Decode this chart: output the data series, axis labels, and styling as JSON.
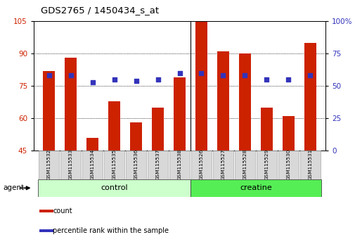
{
  "title": "GDS2765 / 1450434_s_at",
  "samples": [
    "GSM115532",
    "GSM115533",
    "GSM115534",
    "GSM115535",
    "GSM115536",
    "GSM115537",
    "GSM115538",
    "GSM115526",
    "GSM115527",
    "GSM115528",
    "GSM115529",
    "GSM115530",
    "GSM115531"
  ],
  "bar_values": [
    82,
    88,
    51,
    68,
    58,
    65,
    79,
    105,
    91,
    90,
    65,
    61,
    95
  ],
  "pct_values": [
    58,
    58,
    53,
    55,
    54,
    55,
    60,
    60,
    58,
    58,
    55,
    55,
    58
  ],
  "bar_color": "#cc2200",
  "pct_color": "#3333bb",
  "ylim_left": [
    45,
    105
  ],
  "ylim_right": [
    0,
    100
  ],
  "yticks_left": [
    45,
    60,
    75,
    90,
    105
  ],
  "ytick_labels_left": [
    "45",
    "60",
    "75",
    "90",
    "105"
  ],
  "yticks_right": [
    0,
    25,
    50,
    75,
    100
  ],
  "ytick_labels_right": [
    "0",
    "25",
    "50",
    "75",
    "100%"
  ],
  "groups": [
    {
      "label": "control",
      "start": 0,
      "end": 6,
      "color": "#ccffcc"
    },
    {
      "label": "creatine",
      "start": 7,
      "end": 12,
      "color": "#55ee55"
    }
  ],
  "agent_label": "agent",
  "legend_items": [
    {
      "label": "count",
      "color": "#cc2200"
    },
    {
      "label": "percentile rank within the sample",
      "color": "#3333bb"
    }
  ],
  "background_color": "white",
  "tick_area_color": "#d8d8d8"
}
